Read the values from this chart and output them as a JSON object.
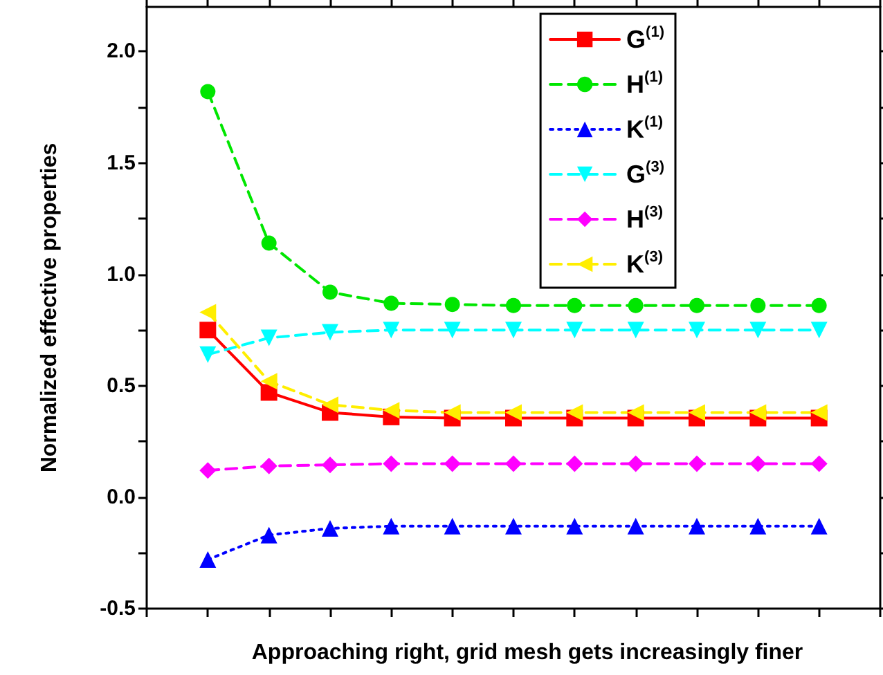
{
  "chart_data": {
    "type": "line",
    "xlabel": "Approaching right, grid mesh gets increasingly finer",
    "ylabel": "Normalized effective properties",
    "categories": [
      null,
      null,
      null,
      null,
      null,
      null,
      null,
      null,
      null,
      null,
      null
    ],
    "ylim": [
      -0.5,
      2.2
    ],
    "yticks": [
      {
        "value": -0.5,
        "label": "-0.5"
      },
      {
        "value": -0.25,
        "label": null
      },
      {
        "value": 0,
        "label": "0.0"
      },
      {
        "value": 0.25,
        "label": null
      },
      {
        "value": 0.5,
        "label": "0.5"
      },
      {
        "value": 0.75,
        "label": null
      },
      {
        "value": 1,
        "label": "1.0"
      },
      {
        "value": 1.25,
        "label": null
      },
      {
        "value": 1.5,
        "label": "1.5"
      },
      {
        "value": 1.75,
        "label": null
      },
      {
        "value": 2,
        "label": "2.0"
      }
    ],
    "tick_labels": "y",
    "grid": false,
    "legend": "top right",
    "series": [
      {
        "name": "G$^{(1)}$",
        "color": "#ff0000",
        "marker": "square",
        "line_style": "solid",
        "values": [
          0.75,
          0.47,
          0.38,
          0.36,
          0.355,
          0.355,
          0.355,
          0.355,
          0.355,
          0.355,
          0.355
        ]
      },
      {
        "name": "H$^{(1)}$",
        "color": "#00e600",
        "marker": "circle",
        "line_style": "dashed",
        "values": [
          1.82,
          1.14,
          0.92,
          0.87,
          0.865,
          0.86,
          0.86,
          0.86,
          0.86,
          0.86,
          0.86
        ]
      },
      {
        "name": "K$^{(1)}$",
        "color": "#0000ff",
        "marker": "triangle",
        "line_style": "dotted",
        "values": [
          -0.28,
          -0.17,
          -0.14,
          -0.13,
          -0.13,
          -0.13,
          -0.13,
          -0.13,
          -0.13,
          -0.13,
          -0.13
        ]
      },
      {
        "name": "G$^{(3)}$",
        "color": "#00ffff",
        "marker": "triangle-down",
        "line_style": "dashed",
        "values": [
          0.64,
          0.715,
          0.74,
          0.75,
          0.75,
          0.75,
          0.75,
          0.75,
          0.75,
          0.75,
          0.75
        ]
      },
      {
        "name": "H$^{(3)}$",
        "color": "#ff00ff",
        "marker": "diamond",
        "line_style": "dashed",
        "values": [
          0.12,
          0.14,
          0.145,
          0.15,
          0.15,
          0.15,
          0.15,
          0.15,
          0.15,
          0.15,
          0.15
        ]
      },
      {
        "name": "K$^{(3)}$",
        "color": "#ffee00",
        "marker": "triangle-left",
        "line_style": "dashed",
        "values": [
          0.83,
          0.52,
          0.415,
          0.39,
          0.38,
          0.38,
          0.38,
          0.38,
          0.38,
          0.38,
          0.38
        ]
      }
    ]
  }
}
